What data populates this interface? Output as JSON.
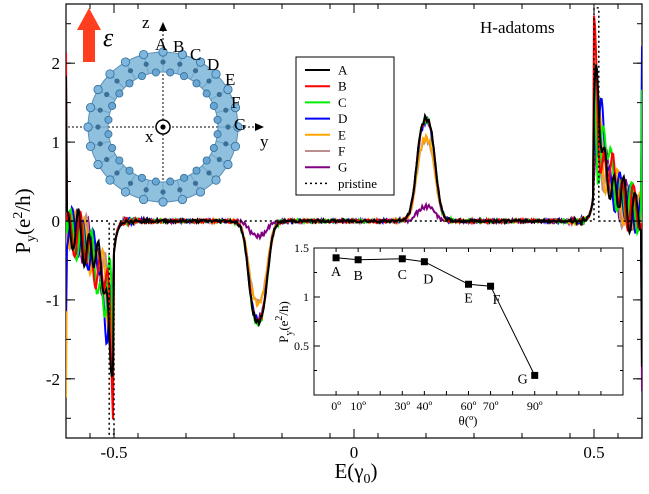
{
  "chart_data": [
    {
      "type": "line",
      "title": "",
      "annotation": "H-adatoms",
      "xlabel": "E(γ0)",
      "ylabel": "Py(e2/h)",
      "xlim": [
        -0.6,
        0.6
      ],
      "ylim": [
        -2.75,
        2.75
      ],
      "x_ticks": [
        -0.5,
        0,
        0.5
      ],
      "x_tick_labels": [
        "-0.5",
        "0",
        "0.5"
      ],
      "y_ticks": [
        -2,
        -1,
        0,
        1,
        2
      ],
      "y_tick_labels": [
        "-2",
        "-1",
        "0",
        "1",
        "2"
      ],
      "legend_position": "upper-center",
      "series": [
        {
          "name": "A",
          "color": "#000000",
          "peak_positive": 1.4,
          "peak_negative": -1.38
        },
        {
          "name": "B",
          "color": "#ff0000",
          "peak_positive": 1.38,
          "peak_negative": -1.36
        },
        {
          "name": "C",
          "color": "#00ee00",
          "peak_positive": 1.39,
          "peak_negative": -1.4
        },
        {
          "name": "D",
          "color": "#0000ff",
          "peak_positive": 1.36,
          "peak_negative": -1.34
        },
        {
          "name": "E",
          "color": "#ffa500",
          "peak_positive": 1.13,
          "peak_negative": -1.12
        },
        {
          "name": "F",
          "color": "#bc8f8f",
          "peak_positive": 1.11,
          "peak_negative": -1.1
        },
        {
          "name": "G",
          "color": "#800080",
          "peak_positive": 0.2,
          "peak_negative": -0.2
        },
        {
          "name": "pristine",
          "color": "#000000",
          "style": "dotted",
          "steps": [
            {
              "x": -0.6,
              "y": 0
            },
            {
              "x": -0.51,
              "y": 0
            },
            {
              "x": -0.51,
              "y": -2.7
            },
            {
              "x": -0.5,
              "y": -2.7
            },
            {
              "x": -0.5,
              "y": 0
            },
            {
              "x": 0.5,
              "y": 0
            },
            {
              "x": 0.5,
              "y": 2.7
            },
            {
              "x": 0.51,
              "y": 2.7
            },
            {
              "x": 0.51,
              "y": 0
            },
            {
              "x": 0.6,
              "y": 0
            }
          ]
        }
      ],
      "features": [
        {
          "center": 0.15,
          "width": 0.04,
          "sign": 1
        },
        {
          "center": -0.2,
          "width": 0.04,
          "sign": -1
        }
      ],
      "inset_image": {
        "labels": [
          "A",
          "B",
          "C",
          "D",
          "E",
          "F",
          "G"
        ],
        "axes": [
          "z",
          "x",
          "y"
        ],
        "field_symbol": "ε"
      }
    },
    {
      "type": "line",
      "title": "",
      "xlabel": "θ(º)",
      "ylabel": "Py(e2/h)",
      "xlim": [
        -1,
        13
      ],
      "ylim": [
        0,
        1.5
      ],
      "y_ticks": [
        0.5,
        1,
        1.5
      ],
      "y_tick_labels": [
        "0.5",
        "1",
        "1.5"
      ],
      "x_tick_positions": [
        0,
        1,
        3,
        4,
        6,
        7,
        9
      ],
      "x_tick_labels": [
        "0º",
        "10º",
        "30º",
        "40º",
        "60º",
        "70º",
        "90º"
      ],
      "points": [
        {
          "label": "A",
          "x": 0,
          "y": 1.4
        },
        {
          "label": "B",
          "x": 1,
          "y": 1.38
        },
        {
          "label": "C",
          "x": 3,
          "y": 1.39
        },
        {
          "label": "D",
          "x": 4,
          "y": 1.36
        },
        {
          "label": "E",
          "x": 6,
          "y": 1.13
        },
        {
          "label": "F",
          "x": 7,
          "y": 1.11
        },
        {
          "label": "G",
          "x": 9,
          "y": 0.2
        }
      ]
    }
  ]
}
